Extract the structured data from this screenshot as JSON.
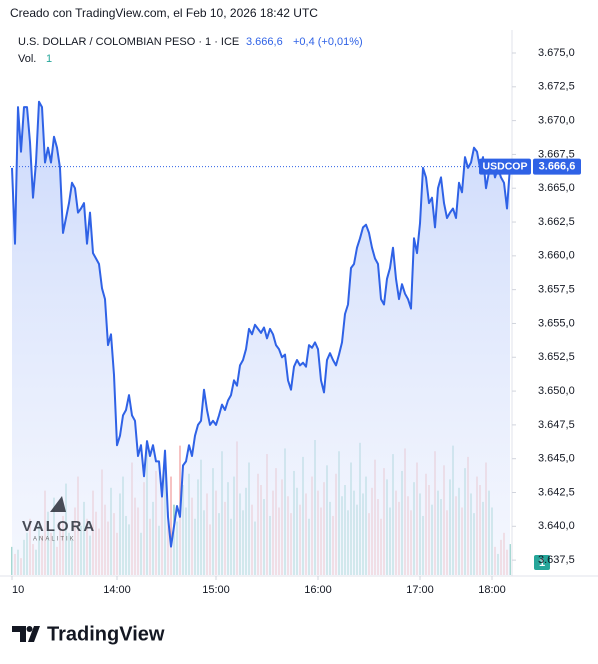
{
  "header": "Creado con TradingView.com, el Feb 10, 2026 18:42 UTC",
  "legend": {
    "title": "U.S. DOLLAR / COLOMBIAN PESO · 1 · ICE",
    "price": "3.666,6",
    "change": "+0,4 (+0,01%)",
    "volume_name": "Vol.",
    "volume_value": "1"
  },
  "symbol": "USDCOP",
  "volume_badge": "1",
  "watermark": {
    "name": "VALORA",
    "sub": "ANALITIK"
  },
  "footer": "TradingView",
  "chart_data": {
    "type": "area",
    "color": "#2f62e6",
    "up_color": "#80c8bf",
    "down_color": "#f2a7a7",
    "xlim": [
      0,
      166
    ],
    "xticks": [
      {
        "value": 0,
        "label": "10"
      },
      {
        "value": 35,
        "label": "14:00"
      },
      {
        "value": 68,
        "label": "15:00"
      },
      {
        "value": 102,
        "label": "16:00"
      },
      {
        "value": 136,
        "label": "17:00"
      },
      {
        "value": 160,
        "label": "18:00"
      }
    ],
    "ylim": [
      3636.4,
      3676.7
    ],
    "yticks": [
      {
        "value": 3637.5,
        "label": "3.637,5"
      },
      {
        "value": 3640,
        "label": "3.640,0"
      },
      {
        "value": 3642.5,
        "label": "3.642,5"
      },
      {
        "value": 3645,
        "label": "3.645,0"
      },
      {
        "value": 3647.5,
        "label": "3.647,5"
      },
      {
        "value": 3650,
        "label": "3.650,0"
      },
      {
        "value": 3652.5,
        "label": "3.652,5"
      },
      {
        "value": 3655,
        "label": "3.655,0"
      },
      {
        "value": 3657.5,
        "label": "3.657,5"
      },
      {
        "value": 3660,
        "label": "3.660,0"
      },
      {
        "value": 3662.5,
        "label": "3.662,5"
      },
      {
        "value": 3665,
        "label": "3.665,0"
      },
      {
        "value": 3667.5,
        "label": "3.667,5"
      },
      {
        "value": 3670,
        "label": "3.670,0"
      },
      {
        "value": 3672.5,
        "label": "3.672,5"
      },
      {
        "value": 3675,
        "label": "3.675,0"
      }
    ],
    "last_value": 3666.6,
    "values": [
      3666.5,
      3660.9,
      3671.0,
      3667.7,
      3671.0,
      3671.0,
      3668.4,
      3664.3,
      3666.9,
      3671.4,
      3671.0,
      3666.9,
      3668.0,
      3666.9,
      3668.8,
      3668.0,
      3666.5,
      3661.7,
      3662.8,
      3663.9,
      3665.4,
      3665.0,
      3663.2,
      3663.5,
      3663.9,
      3660.9,
      3663.2,
      3660.2,
      3659.8,
      3659.4,
      3657.6,
      3656.8,
      3653.4,
      3654.2,
      3651.2,
      3646.0,
      3646.7,
      3648.2,
      3648.6,
      3649.7,
      3648.2,
      3647.8,
      3645.2,
      3646.0,
      3643.7,
      3646.3,
      3645.2,
      3646.0,
      3644.8,
      3644.8,
      3642.2,
      3645.6,
      3640.7,
      3638.5,
      3640.0,
      3641.5,
      3640.7,
      3644.5,
      3644.8,
      3646.0,
      3645.2,
      3646.7,
      3647.5,
      3647.8,
      3650.1,
      3648.6,
      3647.5,
      3647.8,
      3647.5,
      3648.2,
      3649.0,
      3648.6,
      3649.3,
      3649.7,
      3650.8,
      3650.4,
      3651.9,
      3652.3,
      3653.1,
      3654.6,
      3654.2,
      3654.9,
      3654.6,
      3654.3,
      3654.7,
      3653.9,
      3654.6,
      3654.2,
      3653.4,
      3653.1,
      3652.5,
      3652.7,
      3650.8,
      3650.1,
      3651.8,
      3652.3,
      3651.9,
      3652.1,
      3651.8,
      3653.4,
      3653.2,
      3653.6,
      3653.1,
      3650.8,
      3649.9,
      3652.3,
      3652.8,
      3652.3,
      3651.9,
      3652.7,
      3653.6,
      3655.7,
      3656.4,
      3659.1,
      3659.4,
      3660.6,
      3661.3,
      3662.1,
      3662.3,
      3661.7,
      3660.6,
      3659.8,
      3659.4,
      3656.8,
      3656.4,
      3658.3,
      3659.1,
      3660.6,
      3658.3,
      3656.8,
      3657.9,
      3657.2,
      3656.8,
      3656.1,
      3661.3,
      3660.2,
      3662.4,
      3666.5,
      3665.8,
      3663.9,
      3664.3,
      3662.1,
      3665.0,
      3665.8,
      3663.9,
      3662.8,
      3663.2,
      3663.5,
      3662.8,
      3665.4,
      3664.7,
      3667.3,
      3666.5,
      3666.9,
      3668.0,
      3667.7,
      3666.5,
      3667.3,
      3665.0,
      3666.2,
      3666.9,
      3665.8,
      3666.5,
      3665.8,
      3665.4,
      3663.5,
      3666.6
    ],
    "volume": [
      20,
      15,
      18,
      12,
      25,
      30,
      40,
      22,
      18,
      35,
      28,
      60,
      45,
      30,
      55,
      20,
      38,
      42,
      65,
      30,
      25,
      48,
      70,
      35,
      52,
      40,
      28,
      60,
      45,
      33,
      75,
      50,
      38,
      62,
      44,
      30,
      58,
      70,
      42,
      36,
      80,
      55,
      48,
      30,
      66,
      90,
      40,
      52,
      74,
      35,
      60,
      85,
      45,
      70,
      50,
      38,
      92,
      64,
      48,
      72,
      55,
      40,
      68,
      82,
      46,
      58,
      36,
      76,
      60,
      44,
      88,
      52,
      66,
      40,
      70,
      95,
      58,
      46,
      62,
      80,
      50,
      38,
      72,
      64,
      54,
      86,
      42,
      60,
      76,
      48,
      68,
      90,
      56,
      44,
      74,
      62,
      50,
      84,
      58,
      40,
      70,
      96,
      60,
      48,
      66,
      78,
      52,
      42,
      72,
      88,
      56,
      64,
      46,
      80,
      60,
      50,
      94,
      58,
      70,
      44,
      62,
      82,
      54,
      40,
      76,
      68,
      48,
      86,
      60,
      52,
      74,
      90,
      56,
      46,
      66,
      80,
      58,
      42,
      72,
      64,
      50,
      88,
      60,
      54,
      78,
      46,
      68,
      92,
      56,
      62,
      48,
      76,
      84,
      58,
      44,
      70,
      64,
      52,
      80,
      60,
      48,
      20,
      15,
      25,
      30,
      18,
      22
    ]
  }
}
